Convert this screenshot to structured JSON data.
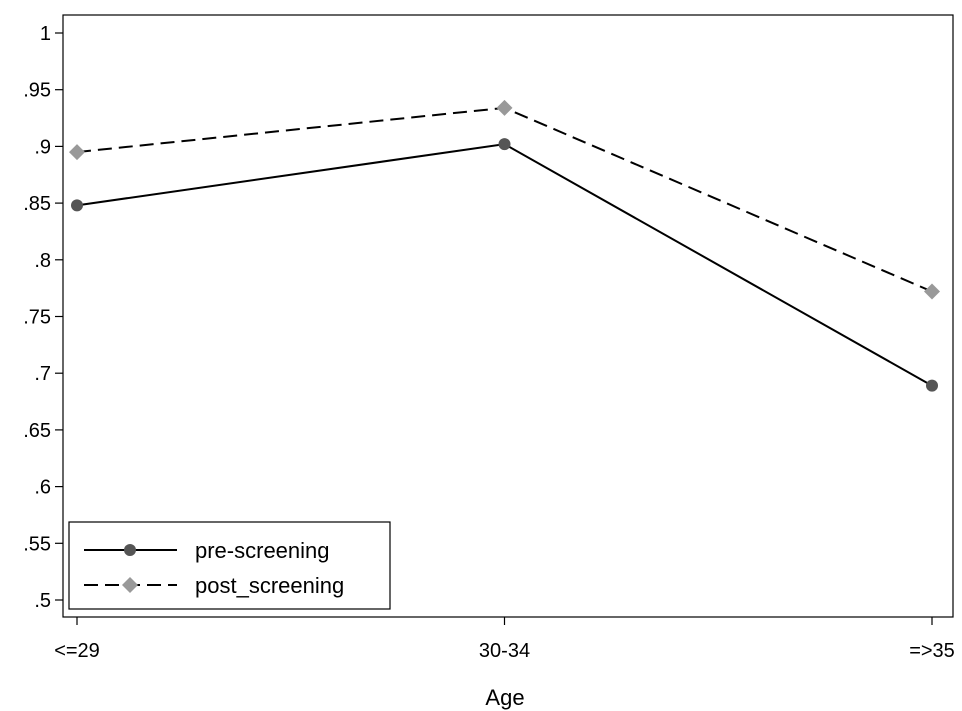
{
  "chart_data": {
    "type": "line",
    "title": "",
    "xlabel": "Age",
    "ylabel": "",
    "categories": [
      "<=29",
      "30-34",
      "=>35"
    ],
    "ylim": [
      0.5,
      1
    ],
    "yticks": [
      {
        "value": 0.5,
        "label": ".5"
      },
      {
        "value": 0.55,
        "label": ".55"
      },
      {
        "value": 0.6,
        "label": ".6"
      },
      {
        "value": 0.65,
        "label": ".65"
      },
      {
        "value": 0.7,
        "label": ".7"
      },
      {
        "value": 0.75,
        "label": ".75"
      },
      {
        "value": 0.8,
        "label": ".8"
      },
      {
        "value": 0.85,
        "label": ".85"
      },
      {
        "value": 0.9,
        "label": ".9"
      },
      {
        "value": 0.95,
        "label": ".95"
      },
      {
        "value": 1,
        "label": "1"
      }
    ],
    "grid": false,
    "legend_position": "bottom-left",
    "series": [
      {
        "name": "pre-screening",
        "values": [
          0.848,
          0.902,
          0.689
        ],
        "color": "#000000",
        "marker_color": "#555555",
        "marker": "circle",
        "line_style": "solid"
      },
      {
        "name": "post_screening",
        "values": [
          0.895,
          0.934,
          0.772
        ],
        "color": "#000000",
        "marker_color": "#999999",
        "marker": "diamond",
        "line_style": "dashed"
      }
    ]
  }
}
